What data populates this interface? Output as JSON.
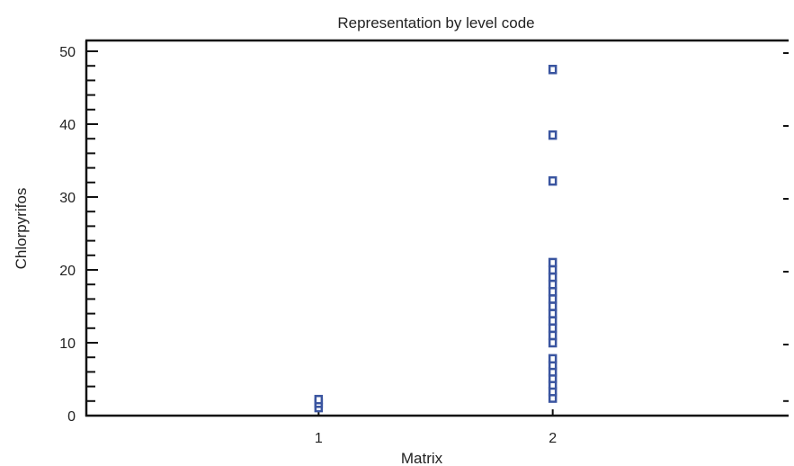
{
  "chart_data": {
    "type": "scatter",
    "title": "Representation by level code",
    "xlabel": "Matrix",
    "ylabel": "Chlorpyrifos",
    "x_tick_labels": [
      "1",
      "2"
    ],
    "y_tick_labels": [
      "0",
      "10",
      "20",
      "30",
      "40",
      "50"
    ],
    "y_ticks": [
      0,
      10,
      20,
      30,
      40,
      50
    ],
    "xlim": [
      0,
      3
    ],
    "ylim": [
      0,
      51
    ],
    "grid": false,
    "marker": "hollow-square",
    "marker_color": "#3a55a0",
    "points": [
      {
        "x": 1,
        "y": 1.1
      },
      {
        "x": 1,
        "y": 1.7
      },
      {
        "x": 1,
        "y": 2.2
      },
      {
        "x": 2,
        "y": 2.4
      },
      {
        "x": 2,
        "y": 3.3
      },
      {
        "x": 2,
        "y": 4.2
      },
      {
        "x": 2,
        "y": 5.1
      },
      {
        "x": 2,
        "y": 6.0
      },
      {
        "x": 2,
        "y": 6.9
      },
      {
        "x": 2,
        "y": 7.8
      },
      {
        "x": 2,
        "y": 10.0
      },
      {
        "x": 2,
        "y": 11.0
      },
      {
        "x": 2,
        "y": 12.0
      },
      {
        "x": 2,
        "y": 13.0
      },
      {
        "x": 2,
        "y": 14.0
      },
      {
        "x": 2,
        "y": 15.0
      },
      {
        "x": 2,
        "y": 16.0
      },
      {
        "x": 2,
        "y": 17.0
      },
      {
        "x": 2,
        "y": 18.0
      },
      {
        "x": 2,
        "y": 19.0
      },
      {
        "x": 2,
        "y": 20.0
      },
      {
        "x": 2,
        "y": 21.0
      },
      {
        "x": 2,
        "y": 32.2
      },
      {
        "x": 2,
        "y": 38.5
      },
      {
        "x": 2,
        "y": 47.5
      }
    ]
  }
}
